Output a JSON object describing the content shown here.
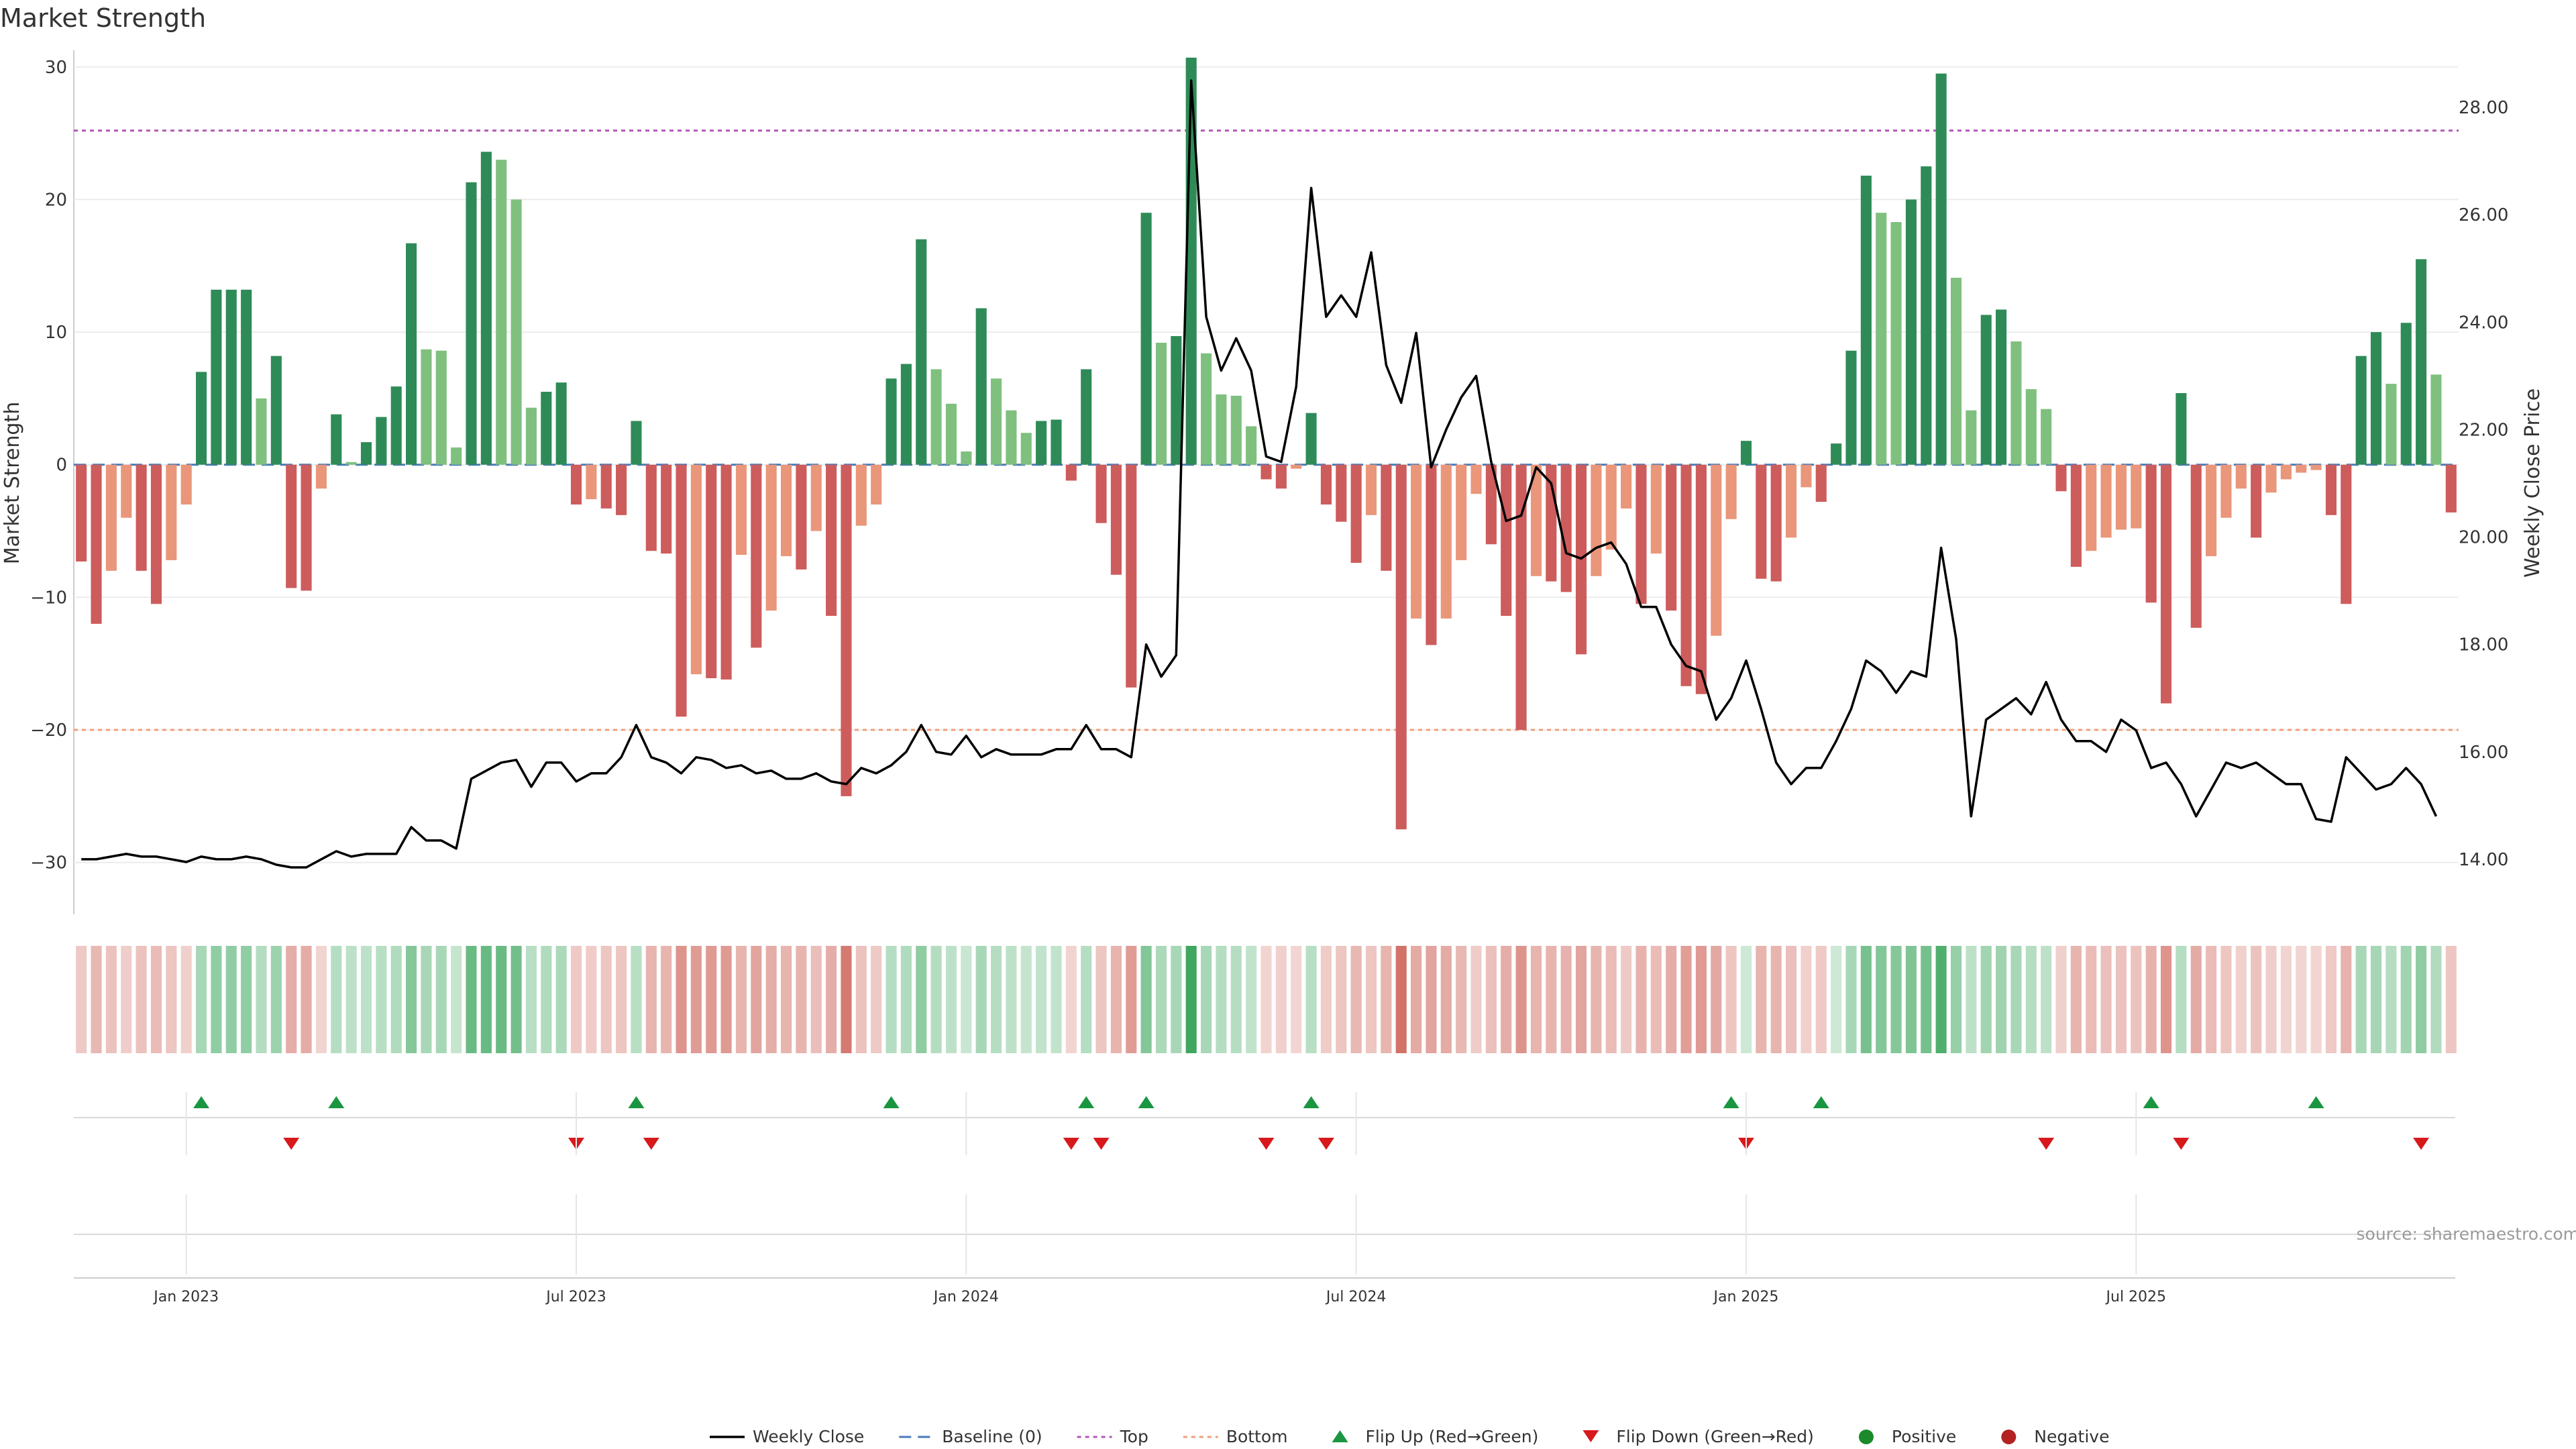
{
  "chart_data": {
    "type": "bar",
    "title": "Market Strength",
    "ylabel_left": "Market Strength",
    "ylabel_right": "Weekly Close Price",
    "source": "source: sharemaestro.com",
    "left_yticks": [
      30,
      20,
      10,
      0,
      -10,
      -20,
      -30
    ],
    "right_yticks": [
      "28.00",
      "26.00",
      "24.00",
      "22.00",
      "20.00",
      "18.00",
      "16.00",
      "14.00"
    ],
    "ylim_left": [
      -33,
      31
    ],
    "ylim_right": [
      13.2,
      29.0
    ],
    "top_level": 25.2,
    "bottom_level": -20.0,
    "x_start": "2022-11-14",
    "weeks": 157,
    "xticks": [
      {
        "label": "Jan 2023",
        "week": 7
      },
      {
        "label": "Jul 2023",
        "week": 33
      },
      {
        "label": "Jan 2024",
        "week": 59
      },
      {
        "label": "Jul 2024",
        "week": 85
      },
      {
        "label": "Jan 2025",
        "week": 111
      },
      {
        "label": "Jul 2025",
        "week": 137
      }
    ],
    "strength": [
      -7.3,
      -12,
      -8,
      -4,
      -8,
      -10.5,
      -7.2,
      -3,
      7,
      13.2,
      13.2,
      13.2,
      5,
      8.2,
      -9.3,
      -9.5,
      -1.8,
      3.8,
      0.2,
      1.7,
      3.6,
      5.9,
      16.7,
      8.7,
      8.6,
      1.3,
      21.3,
      23.6,
      23,
      20,
      4.3,
      5.5,
      6.2,
      -3,
      -2.6,
      -3.3,
      -3.8,
      3.3,
      -6.5,
      -6.7,
      -19,
      -15.8,
      -16.1,
      -16.2,
      -6.8,
      -13.8,
      -11,
      -6.9,
      -7.9,
      -5,
      -11.4,
      -25,
      -4.6,
      -3,
      6.5,
      7.6,
      17,
      7.2,
      4.6,
      1,
      11.8,
      6.5,
      4.1,
      2.4,
      3.3,
      3.4,
      -1.2,
      7.2,
      -4.4,
      -8.3,
      -16.8,
      19,
      9.2,
      9.7,
      30.7,
      8.4,
      5.3,
      5.2,
      2.9,
      -1.1,
      -1.8,
      -0.3,
      3.9,
      -3,
      -4.3,
      -7.4,
      -3.8,
      -8,
      -27.5,
      -11.6,
      -13.6,
      -11.6,
      -7.2,
      -2.2,
      -6,
      -11.4,
      -20,
      -8.4,
      -8.8,
      -9.6,
      -14.3,
      -8.4,
      -6.4,
      -3.3,
      -10.5,
      -6.7,
      -11,
      -16.7,
      -17.3,
      -12.9,
      -4.1,
      1.8,
      -8.6,
      -8.8,
      -5.5,
      -1.7,
      -2.8,
      1.6,
      8.6,
      21.8,
      19,
      18.3,
      20,
      22.5,
      29.5,
      14.1,
      4.1,
      11.3,
      11.7,
      9.3,
      5.7,
      4.2,
      -2,
      -7.7,
      -6.5,
      -5.5,
      -4.9,
      -4.8,
      -10.4,
      -18,
      5.4,
      -12.3,
      -6.9,
      -4,
      -1.8,
      -5.5,
      -2.1,
      -1.1,
      -0.6,
      -0.4,
      -3.8,
      -10.5,
      8.2,
      10,
      6.1,
      10.7,
      15.5,
      6.8,
      -3.6
    ],
    "close": [
      14.0,
      14.0,
      14.05,
      14.1,
      14.05,
      14.05,
      14.0,
      13.95,
      14.05,
      14.0,
      14.0,
      14.05,
      14.0,
      13.9,
      13.85,
      13.85,
      14.0,
      14.15,
      14.05,
      14.1,
      14.1,
      14.1,
      14.6,
      14.35,
      14.35,
      14.2,
      15.5,
      15.65,
      15.8,
      15.85,
      15.35,
      15.8,
      15.8,
      15.45,
      15.6,
      15.6,
      15.9,
      16.5,
      15.9,
      15.8,
      15.6,
      15.9,
      15.85,
      15.7,
      15.75,
      15.6,
      15.65,
      15.5,
      15.5,
      15.6,
      15.45,
      15.4,
      15.7,
      15.6,
      15.75,
      16.0,
      16.5,
      16.0,
      15.95,
      16.3,
      15.9,
      16.05,
      15.95,
      15.95,
      15.95,
      16.05,
      16.05,
      16.5,
      16.05,
      16.05,
      15.9,
      18.0,
      17.4,
      17.8,
      28.5,
      24.1,
      23.1,
      23.7,
      23.1,
      21.5,
      21.4,
      22.8,
      26.5,
      24.1,
      24.5,
      24.1,
      25.3,
      23.2,
      22.5,
      23.8,
      21.3,
      22.0,
      22.6,
      23.0,
      21.4,
      20.3,
      20.4,
      21.3,
      21.0,
      19.7,
      19.6,
      19.8,
      19.9,
      19.5,
      18.7,
      18.7,
      18.0,
      17.6,
      17.5,
      16.6,
      17.0,
      17.7,
      16.8,
      15.8,
      15.4,
      15.7,
      15.7,
      16.2,
      16.8,
      17.7,
      17.5,
      17.1,
      17.5,
      17.4,
      19.8,
      18.1,
      14.8,
      16.6,
      16.8,
      17.0,
      16.7,
      17.3,
      16.6,
      16.2,
      16.2,
      16.0,
      16.6,
      16.4,
      15.7,
      15.8,
      15.4,
      14.8,
      15.3,
      15.8,
      15.7,
      15.8,
      15.6,
      15.4,
      15.4,
      14.75,
      14.7,
      15.9,
      15.6,
      15.3,
      15.4,
      15.7,
      15.4,
      14.8
    ],
    "heat_values": [
      0.18,
      0.28,
      0.22,
      0.15,
      0.22,
      0.26,
      0.2,
      0.14,
      0.3,
      0.42,
      0.42,
      0.42,
      0.25,
      0.36,
      0.34,
      0.35,
      0.12,
      0.24,
      0.2,
      0.2,
      0.22,
      0.26,
      0.48,
      0.3,
      0.3,
      0.15,
      0.62,
      0.64,
      0.62,
      0.58,
      0.22,
      0.26,
      0.28,
      0.18,
      0.17,
      0.2,
      0.2,
      0.22,
      0.3,
      0.3,
      0.5,
      0.45,
      0.46,
      0.46,
      0.3,
      0.4,
      0.34,
      0.3,
      0.3,
      0.25,
      0.34,
      0.65,
      0.22,
      0.18,
      0.24,
      0.26,
      0.44,
      0.25,
      0.2,
      0.14,
      0.3,
      0.24,
      0.2,
      0.16,
      0.18,
      0.18,
      0.12,
      0.24,
      0.2,
      0.3,
      0.45,
      0.5,
      0.28,
      0.3,
      0.85,
      0.3,
      0.24,
      0.24,
      0.18,
      0.12,
      0.14,
      0.1,
      0.22,
      0.17,
      0.2,
      0.28,
      0.2,
      0.3,
      0.7,
      0.36,
      0.4,
      0.36,
      0.28,
      0.16,
      0.24,
      0.34,
      0.5,
      0.3,
      0.3,
      0.32,
      0.4,
      0.3,
      0.26,
      0.18,
      0.32,
      0.26,
      0.34,
      0.44,
      0.46,
      0.38,
      0.2,
      0.12,
      0.3,
      0.3,
      0.24,
      0.14,
      0.18,
      0.12,
      0.3,
      0.55,
      0.5,
      0.48,
      0.52,
      0.56,
      0.75,
      0.4,
      0.2,
      0.34,
      0.35,
      0.3,
      0.24,
      0.2,
      0.14,
      0.3,
      0.26,
      0.24,
      0.22,
      0.22,
      0.32,
      0.5,
      0.24,
      0.36,
      0.26,
      0.2,
      0.14,
      0.22,
      0.15,
      0.12,
      0.1,
      0.1,
      0.18,
      0.32,
      0.3,
      0.32,
      0.24,
      0.34,
      0.44,
      0.26,
      0.2
    ],
    "flip_up_weeks": [
      8,
      17,
      37,
      54,
      67,
      71,
      82,
      110,
      116,
      138,
      149
    ],
    "flip_down_weeks": [
      14,
      33,
      38,
      66,
      68,
      79,
      83,
      111,
      131,
      140,
      156
    ],
    "legend": [
      {
        "label": "Weekly Close",
        "symbol": "line",
        "color": "#000000"
      },
      {
        "label": "Baseline (0)",
        "symbol": "dash",
        "color": "#4a7ab8"
      },
      {
        "label": "Top",
        "symbol": "dot",
        "color": "#b05ab8"
      },
      {
        "label": "Bottom",
        "symbol": "dot",
        "color": "#f0a07a"
      },
      {
        "label": "Flip Up (Red→Green)",
        "symbol": "triangle-up",
        "color": "#1a9641"
      },
      {
        "label": "Flip Down (Green→Red)",
        "symbol": "triangle-down",
        "color": "#d7191c"
      },
      {
        "label": "Positive",
        "symbol": "circle",
        "color": "#1a8a2a"
      },
      {
        "label": "Negative",
        "symbol": "circle",
        "color": "#b22222"
      }
    ],
    "colors": {
      "pos_strong": "#2e8b57",
      "pos_weak": "#7fc07f",
      "neg_strong": "#cd5c5c",
      "neg_weak": "#e9967a",
      "heat_green": "#1a9641",
      "heat_red": "#c0392b"
    }
  }
}
